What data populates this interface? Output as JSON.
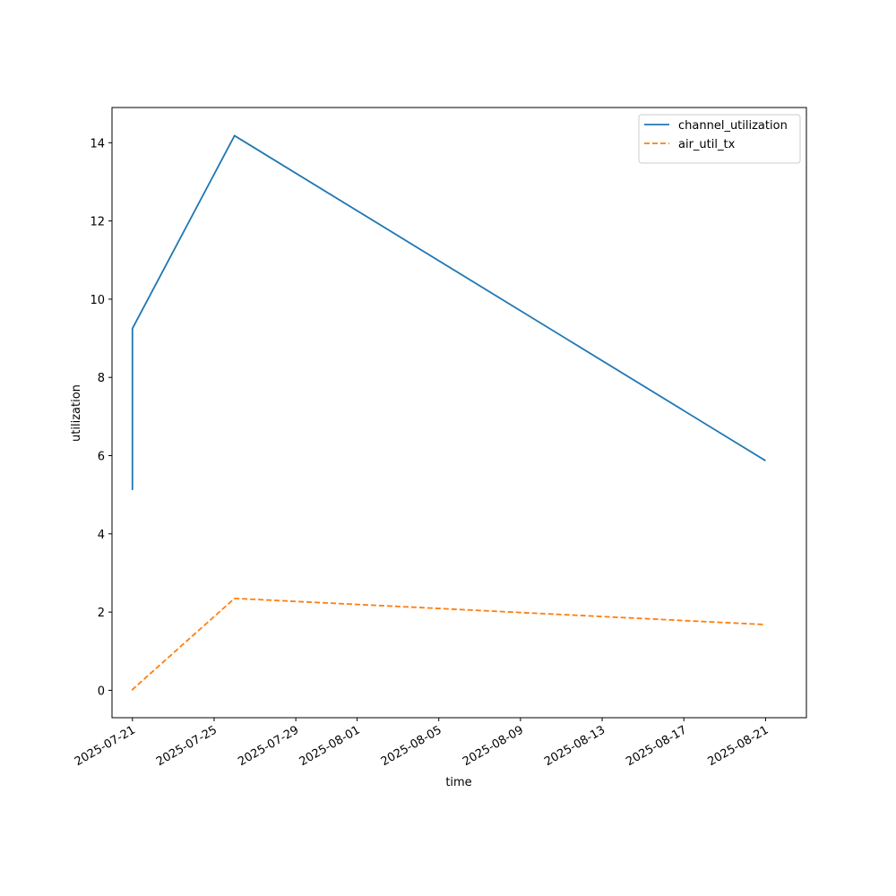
{
  "chart_data": {
    "type": "line",
    "x_label": "time",
    "y_label": "utilization",
    "x": [
      "2025-07-21",
      "2025-07-21",
      "2025-07-26",
      "2025-08-21"
    ],
    "series": [
      {
        "name": "channel_utilization",
        "color": "#1f77b4",
        "linestyle": "solid",
        "values": [
          5.12,
          9.25,
          14.18,
          5.87
        ]
      },
      {
        "name": "air_util_tx",
        "color": "#ff7f0e",
        "linestyle": "dashed",
        "values": [
          0,
          0.02,
          2.35,
          1.68
        ]
      }
    ],
    "xlim": [
      "2025-07-20",
      "2025-08-23"
    ],
    "xticks": [
      "2025-07-21",
      "2025-07-25",
      "2025-07-29",
      "2025-08-01",
      "2025-08-05",
      "2025-08-09",
      "2025-08-13",
      "2025-08-17",
      "2025-08-21"
    ],
    "ylim": [
      -0.7,
      14.9
    ],
    "yticks": [
      0,
      2,
      4,
      6,
      8,
      10,
      12,
      14
    ],
    "grid": false,
    "legend": "upper right"
  }
}
